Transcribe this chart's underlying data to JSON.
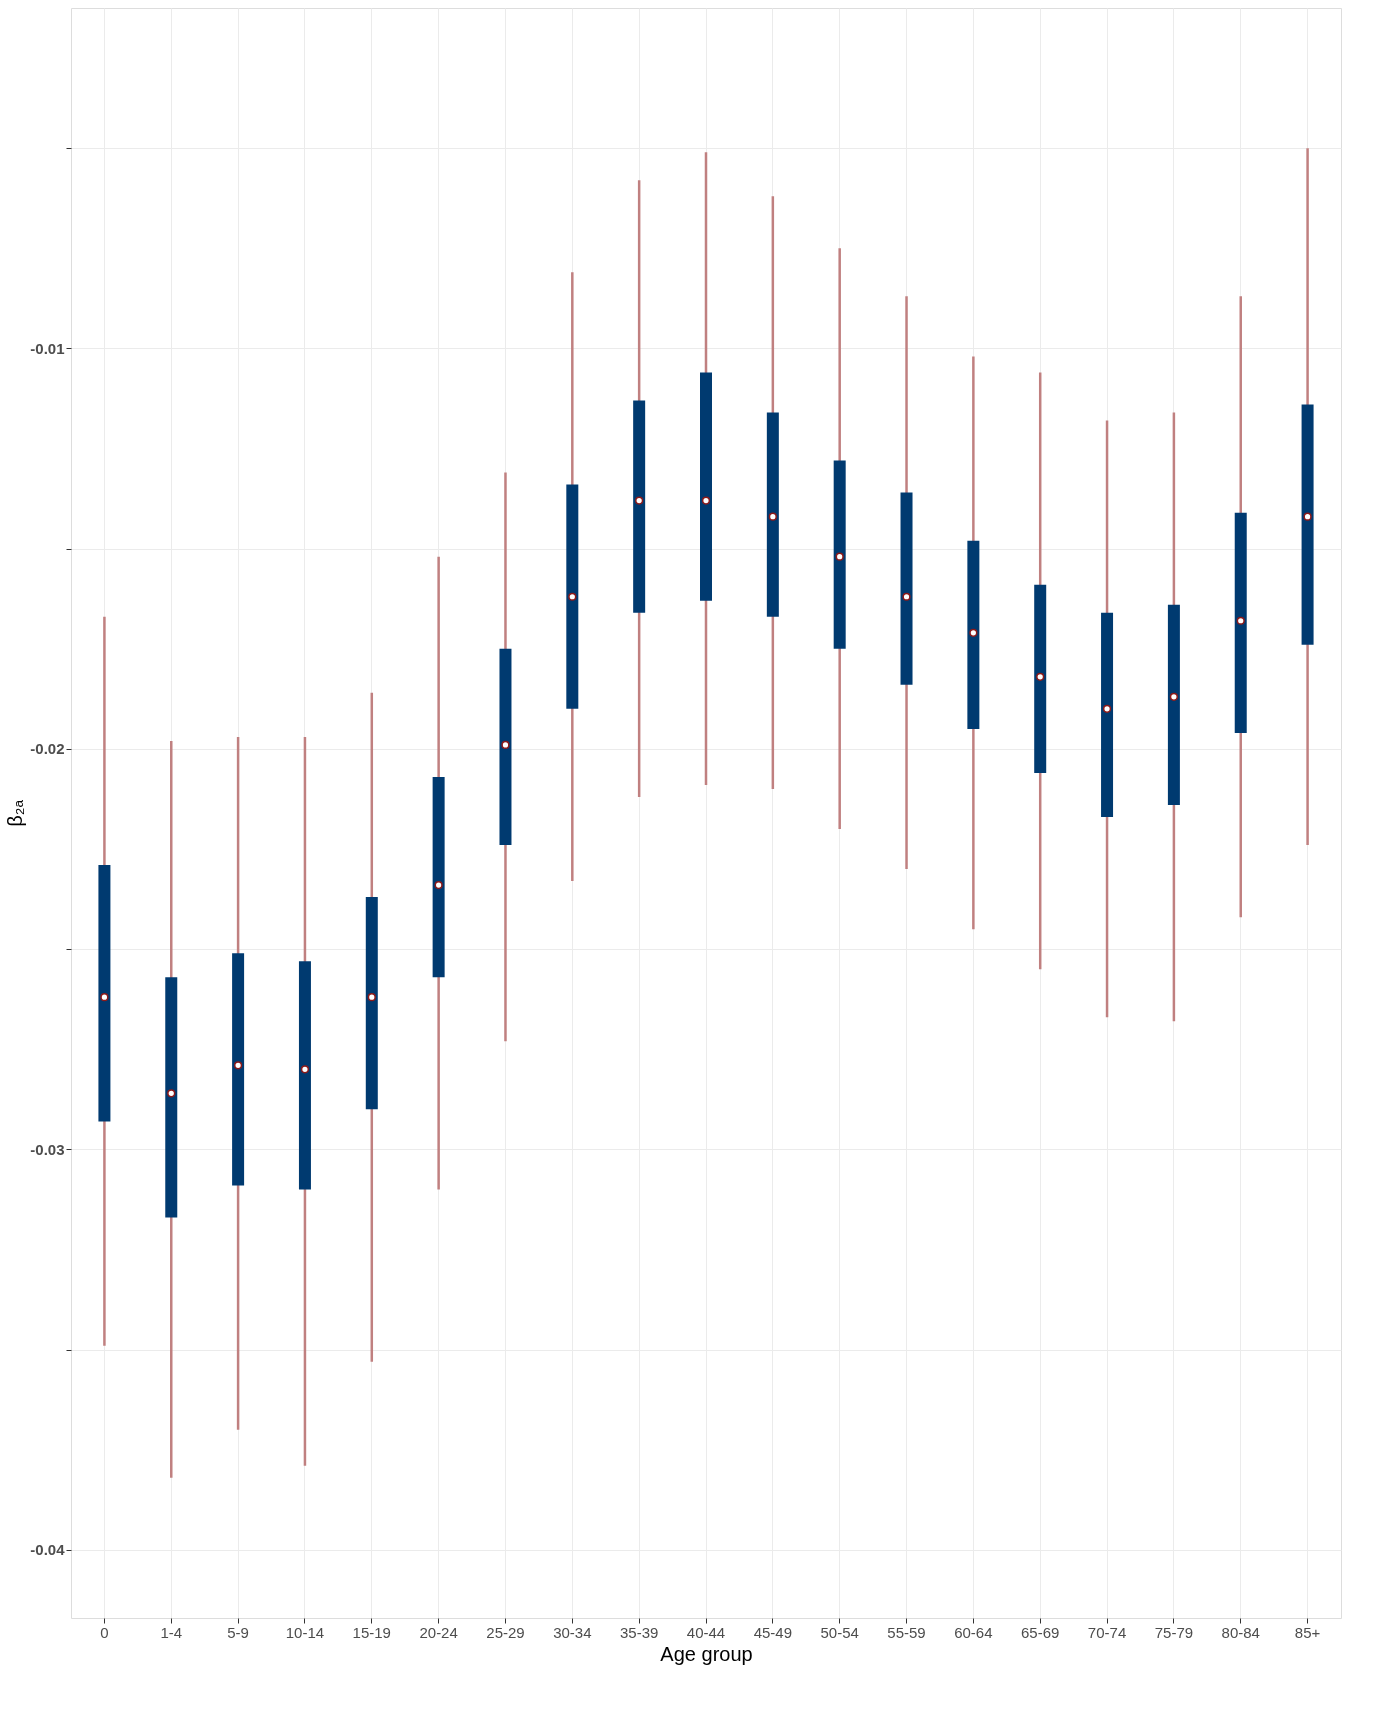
{
  "chart_data": {
    "type": "bar",
    "xlabel": "Age group",
    "ylabel": "β₂ₐ",
    "grid": true,
    "categories": [
      "0",
      "1-4",
      "5-9",
      "10-14",
      "15-19",
      "20-24",
      "25-29",
      "30-34",
      "35-39",
      "40-44",
      "45-49",
      "50-54",
      "55-59",
      "60-64",
      "65-69",
      "70-74",
      "75-79",
      "80-84",
      "85+"
    ],
    "ylim": [
      -0.0417,
      -0.0015
    ],
    "yticks": [
      {
        "value": -0.005,
        "label": null
      },
      -0.01,
      {
        "value": -0.015,
        "label": null
      },
      -0.02,
      {
        "value": -0.025,
        "label": null
      },
      -0.03,
      {
        "value": -0.035,
        "label": null
      },
      -0.04
    ],
    "series": [
      {
        "type": "bar",
        "color": "#003a70",
        "base": [
          -0.0293,
          -0.0317,
          -0.0309,
          -0.031,
          -0.029,
          -0.0257,
          -0.0224,
          -0.019,
          -0.0166,
          -0.0163,
          -0.0167,
          -0.0175,
          -0.0184,
          -0.0195,
          -0.0206,
          -0.0217,
          -0.0214,
          -0.0196,
          -0.0174
        ],
        "values": [
          0.0064,
          0.006,
          0.0058,
          0.0057,
          0.0053,
          0.005,
          0.0049,
          0.0056,
          0.0053,
          0.0057,
          0.0051,
          0.0047,
          0.0048,
          0.0047,
          0.0047,
          0.0051,
          0.005,
          0.0055,
          0.006
        ]
      },
      {
        "type": "scatter",
        "color": "#8b1a1a",
        "marker": "circle",
        "values": [
          -0.0262,
          -0.0286,
          -0.0279,
          -0.028,
          -0.0262,
          -0.0234,
          -0.0199,
          -0.0162,
          -0.0138,
          -0.0138,
          -0.0142,
          -0.0152,
          -0.0162,
          -0.0171,
          -0.0182,
          -0.019,
          -0.0187,
          -0.0168,
          -0.0142
        ],
        "errors": [
          [
            -0.0349,
            -0.0167
          ],
          [
            -0.0382,
            -0.0198
          ],
          [
            -0.037,
            -0.0197
          ],
          [
            -0.0379,
            -0.0197
          ],
          [
            -0.0353,
            -0.0186
          ],
          [
            -0.031,
            -0.0152
          ],
          [
            -0.0273,
            -0.0131
          ],
          [
            -0.0233,
            -0.0081
          ],
          [
            -0.0212,
            -0.0058
          ],
          [
            -0.0209,
            -0.0051
          ],
          [
            -0.021,
            -0.0062
          ],
          [
            -0.022,
            -0.0075
          ],
          [
            -0.023,
            -0.0087
          ],
          [
            -0.0245,
            -0.0102
          ],
          [
            -0.0255,
            -0.0106
          ],
          [
            -0.0267,
            -0.0118
          ],
          [
            -0.0268,
            -0.0116
          ],
          [
            -0.0242,
            -0.0087
          ],
          [
            -0.0224,
            -0.005
          ]
        ]
      }
    ]
  }
}
